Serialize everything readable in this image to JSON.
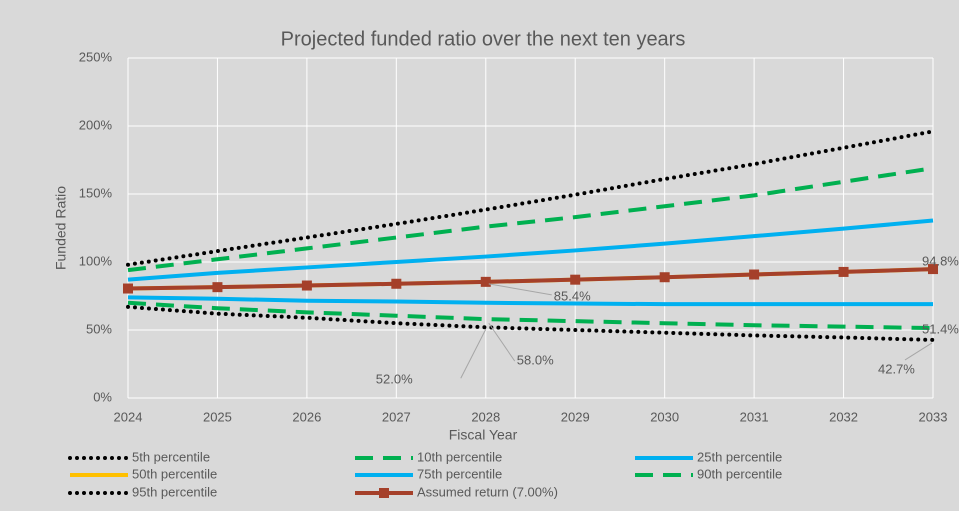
{
  "chart_data": {
    "type": "line",
    "title": "Projected funded ratio over the next ten years",
    "x_label": "Fiscal Year",
    "y_label": "Funded Ratio",
    "categories": [
      "2024",
      "2025",
      "2026",
      "2027",
      "2028",
      "2029",
      "2030",
      "2031",
      "2032",
      "2033"
    ],
    "ylim": [
      0,
      250
    ],
    "yticks": [
      {
        "value": 0,
        "label": "0%"
      },
      {
        "value": 50,
        "label": "50%"
      },
      {
        "value": 100,
        "label": "100%"
      },
      {
        "value": 150,
        "label": "150%"
      },
      {
        "value": 200,
        "label": "200%"
      },
      {
        "value": 250,
        "label": "250%"
      }
    ],
    "grid": true,
    "legend": "bottom",
    "series": [
      {
        "name": "5th percentile",
        "color": "#000000",
        "dash": "dot",
        "values": [
          67,
          62,
          59,
          55,
          52,
          50,
          48,
          46,
          44.5,
          42.7
        ],
        "value_labels": [
          null,
          null,
          null,
          null,
          "52.0%",
          null,
          null,
          null,
          null,
          "42.7%"
        ]
      },
      {
        "name": "10th percentile",
        "color": "#00b050",
        "dash": "dash",
        "values": [
          70,
          66,
          63,
          60.5,
          58,
          56.5,
          55,
          53.5,
          52.5,
          51.4
        ],
        "value_labels": [
          null,
          null,
          null,
          null,
          "58.0%",
          null,
          null,
          null,
          null,
          "51.4%"
        ]
      },
      {
        "name": "25th percentile",
        "color": "#00b0f0",
        "dash": "solid",
        "values": [
          74,
          73,
          71.5,
          71,
          70,
          69.5,
          69,
          69,
          69,
          69
        ]
      },
      {
        "name": "50th percentile",
        "color": "#ffc000",
        "dash": "solid",
        "values": [
          80.5,
          81.5,
          82.7,
          84,
          85.4,
          87,
          88.8,
          90.8,
          92.7,
          94.8
        ]
      },
      {
        "name": "75th percentile",
        "color": "#00b0f0",
        "dash": "solid",
        "values": [
          87,
          92,
          96,
          100,
          104,
          108.5,
          113.5,
          119,
          124.5,
          130.5
        ]
      },
      {
        "name": "90th percentile",
        "color": "#00b050",
        "dash": "dash",
        "values": [
          94,
          102,
          110,
          118,
          126,
          133,
          141,
          149,
          159,
          169
        ]
      },
      {
        "name": "95th percentile",
        "color": "#000000",
        "dash": "dot",
        "values": [
          98,
          108,
          118,
          128,
          138.5,
          149.5,
          161,
          172,
          184,
          196
        ]
      },
      {
        "name": "Assumed return (7.00%)",
        "color": "#a5402a",
        "dash": "solid",
        "marker": "square",
        "values": [
          80.5,
          81.5,
          82.7,
          84,
          85.4,
          87,
          88.8,
          90.8,
          92.7,
          94.8
        ],
        "value_labels": [
          null,
          null,
          null,
          null,
          "85.4%",
          null,
          null,
          null,
          null,
          "94.8%"
        ]
      }
    ]
  }
}
